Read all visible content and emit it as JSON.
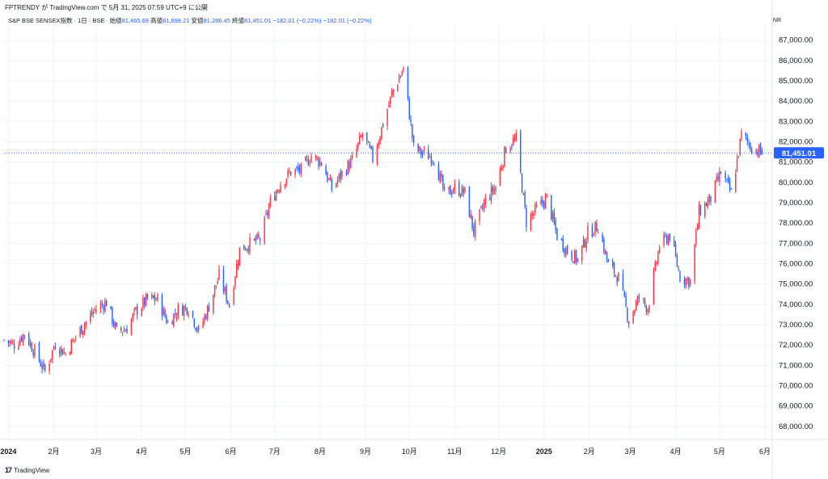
{
  "header": {
    "publisher_line": "FPTRENDY が TradingView.com で 5月 31, 2025 07:59 UTC+9 に公開"
  },
  "symbol": {
    "name": "S&P BSE SENSEX指数 · 1日 · BSE",
    "open_label": "始値",
    "open": "81,465.69",
    "high_label": "高値",
    "high": "81,698.21",
    "low_label": "安値",
    "low": "81,286.45",
    "close_label": "終値",
    "close": "81,451.01",
    "change": "−182.01 (−0.22%)",
    "change2": "−182.01 (−0.22%)"
  },
  "currency": "INR",
  "price_label": "81,451.01",
  "footer": {
    "brand": "TradingView"
  },
  "colors": {
    "up": "#f23645",
    "down": "#2962ff",
    "price_tag": "#2962ff",
    "grid": "#f0f3fa"
  },
  "chart_data": {
    "type": "candlestick",
    "title": "S&P BSE SENSEX指数 · 1日 · BSE",
    "ylabel": "INR",
    "ylim": [
      67400,
      87700
    ],
    "y_ticks": [
      68000,
      69000,
      70000,
      71000,
      72000,
      73000,
      74000,
      75000,
      76000,
      77000,
      78000,
      79000,
      80000,
      81000,
      82000,
      83000,
      84000,
      85000,
      86000,
      87000
    ],
    "y_tick_labels": [
      "68,000.00",
      "69,000.00",
      "70,000.00",
      "71,000.00",
      "72,000.00",
      "73,000.00",
      "74,000.00",
      "75,000.00",
      "76,000.00",
      "77,000.00",
      "78,000.00",
      "79,000.00",
      "80,000.00",
      "81,000.00",
      "82,000.00",
      "83,000.00",
      "84,000.00",
      "85,000.00",
      "86,000.00",
      "87,000.00"
    ],
    "x_range": [
      "2023-12-29",
      "2025-06-06"
    ],
    "x_ticks": [
      {
        "label": "2024",
        "date": "2024-01-01",
        "bold": true
      },
      {
        "label": "2月",
        "date": "2024-02-01"
      },
      {
        "label": "3月",
        "date": "2024-03-01"
      },
      {
        "label": "4月",
        "date": "2024-04-01"
      },
      {
        "label": "5月",
        "date": "2024-05-01"
      },
      {
        "label": "6月",
        "date": "2024-06-01"
      },
      {
        "label": "7月",
        "date": "2024-07-01"
      },
      {
        "label": "8月",
        "date": "2024-08-01"
      },
      {
        "label": "9月",
        "date": "2024-09-01"
      },
      {
        "label": "10月",
        "date": "2024-10-01"
      },
      {
        "label": "11月",
        "date": "2024-11-01"
      },
      {
        "label": "12月",
        "date": "2024-12-01"
      },
      {
        "label": "2025",
        "date": "2025-01-01",
        "bold": true
      },
      {
        "label": "2月",
        "date": "2025-02-01"
      },
      {
        "label": "3月",
        "date": "2025-03-01"
      },
      {
        "label": "4月",
        "date": "2025-04-01"
      },
      {
        "label": "5月",
        "date": "2025-05-01"
      },
      {
        "label": "6月",
        "date": "2025-06-01"
      }
    ],
    "last_close": 81451.01,
    "closes_weekly": [
      {
        "date": "2023-12-29",
        "c": 72240
      },
      {
        "date": "2024-01-05",
        "c": 72026
      },
      {
        "date": "2024-01-12",
        "c": 72568
      },
      {
        "date": "2024-01-19",
        "c": 71683
      },
      {
        "date": "2024-01-26",
        "c": 70700
      },
      {
        "date": "2024-02-02",
        "c": 72085
      },
      {
        "date": "2024-02-09",
        "c": 71595
      },
      {
        "date": "2024-02-16",
        "c": 72426
      },
      {
        "date": "2024-02-23",
        "c": 73142
      },
      {
        "date": "2024-03-01",
        "c": 73806
      },
      {
        "date": "2024-03-08",
        "c": 74119
      },
      {
        "date": "2024-03-15",
        "c": 72643
      },
      {
        "date": "2024-03-22",
        "c": 72831
      },
      {
        "date": "2024-03-28",
        "c": 73651
      },
      {
        "date": "2024-04-05",
        "c": 74248
      },
      {
        "date": "2024-04-12",
        "c": 74244
      },
      {
        "date": "2024-04-19",
        "c": 73088
      },
      {
        "date": "2024-04-26",
        "c": 73730
      },
      {
        "date": "2024-05-03",
        "c": 73878
      },
      {
        "date": "2024-05-10",
        "c": 72664
      },
      {
        "date": "2024-05-17",
        "c": 73917
      },
      {
        "date": "2024-05-24",
        "c": 75410
      },
      {
        "date": "2024-05-31",
        "c": 73961
      },
      {
        "date": "2024-06-07",
        "c": 76693
      },
      {
        "date": "2024-06-14",
        "c": 76992
      },
      {
        "date": "2024-06-21",
        "c": 77209
      },
      {
        "date": "2024-06-28",
        "c": 79032
      },
      {
        "date": "2024-07-05",
        "c": 79996
      },
      {
        "date": "2024-07-12",
        "c": 80519
      },
      {
        "date": "2024-07-19",
        "c": 80604
      },
      {
        "date": "2024-07-26",
        "c": 81332
      },
      {
        "date": "2024-08-02",
        "c": 80982
      },
      {
        "date": "2024-08-09",
        "c": 79706
      },
      {
        "date": "2024-08-16",
        "c": 80436
      },
      {
        "date": "2024-08-23",
        "c": 81086
      },
      {
        "date": "2024-08-30",
        "c": 82365
      },
      {
        "date": "2024-09-06",
        "c": 81183
      },
      {
        "date": "2024-09-13",
        "c": 82890
      },
      {
        "date": "2024-09-20",
        "c": 84544
      },
      {
        "date": "2024-09-27",
        "c": 85571
      },
      {
        "date": "2024-10-04",
        "c": 81688
      },
      {
        "date": "2024-10-11",
        "c": 81381
      },
      {
        "date": "2024-10-18",
        "c": 81224
      },
      {
        "date": "2024-10-25",
        "c": 79402
      },
      {
        "date": "2024-11-01",
        "c": 79724
      },
      {
        "date": "2024-11-08",
        "c": 79486
      },
      {
        "date": "2024-11-14",
        "c": 77580
      },
      {
        "date": "2024-11-22",
        "c": 79117
      },
      {
        "date": "2024-11-29",
        "c": 79803
      },
      {
        "date": "2024-12-06",
        "c": 81709
      },
      {
        "date": "2024-12-13",
        "c": 82133
      },
      {
        "date": "2024-12-20",
        "c": 78041
      },
      {
        "date": "2024-12-27",
        "c": 78699
      },
      {
        "date": "2025-01-03",
        "c": 79223
      },
      {
        "date": "2025-01-10",
        "c": 77379
      },
      {
        "date": "2025-01-17",
        "c": 76619
      },
      {
        "date": "2025-01-24",
        "c": 76190
      },
      {
        "date": "2025-01-31",
        "c": 77501
      },
      {
        "date": "2025-02-07",
        "c": 77860
      },
      {
        "date": "2025-02-14",
        "c": 75939
      },
      {
        "date": "2025-02-21",
        "c": 75311
      },
      {
        "date": "2025-02-28",
        "c": 73198
      },
      {
        "date": "2025-03-07",
        "c": 74333
      },
      {
        "date": "2025-03-13",
        "c": 73828
      },
      {
        "date": "2025-03-21",
        "c": 76906
      },
      {
        "date": "2025-03-28",
        "c": 77415
      },
      {
        "date": "2025-04-04",
        "c": 75365
      },
      {
        "date": "2025-04-11",
        "c": 75157
      },
      {
        "date": "2025-04-17",
        "c": 78553
      },
      {
        "date": "2025-04-25",
        "c": 79212
      },
      {
        "date": "2025-05-02",
        "c": 80502
      },
      {
        "date": "2025-05-09",
        "c": 79454
      },
      {
        "date": "2025-05-16",
        "c": 82331
      },
      {
        "date": "2025-05-23",
        "c": 81721
      },
      {
        "date": "2025-05-30",
        "c": 81451
      }
    ]
  }
}
